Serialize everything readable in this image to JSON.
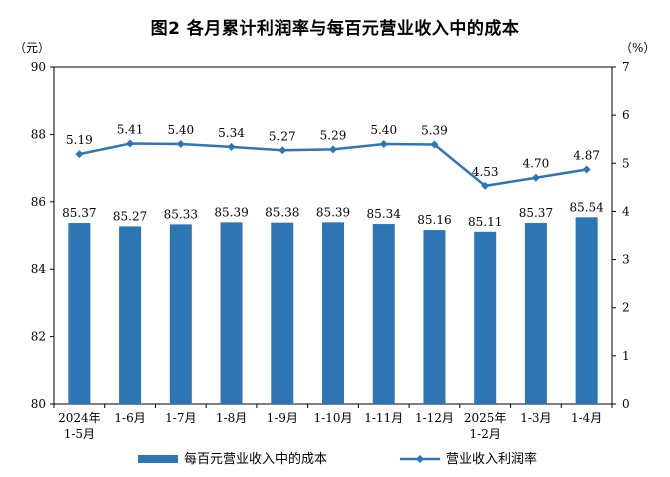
{
  "chart_data": {
    "type": "bar+line",
    "title": "图2  各月累计利润率与每百元营业收入中的成本",
    "left_unit": "（元）",
    "right_unit": "（%）",
    "left_ylim": [
      80,
      90
    ],
    "left_ticks": [
      "80",
      "82",
      "84",
      "86",
      "88",
      "90"
    ],
    "right_ylim": [
      0,
      7
    ],
    "right_ticks": [
      "0",
      "1",
      "2",
      "3",
      "4",
      "5",
      "6",
      "7"
    ],
    "categories": [
      [
        "2024年",
        "1-5月"
      ],
      [
        "1-6月"
      ],
      [
        "1-7月"
      ],
      [
        "1-8月"
      ],
      [
        "1-9月"
      ],
      [
        "1-10月"
      ],
      [
        "1-11月"
      ],
      [
        "1-12月"
      ],
      [
        "2025年",
        "1-2月"
      ],
      [
        "1-3月"
      ],
      [
        "1-4月"
      ]
    ],
    "bar_series": {
      "name": "每百元营业收入中的成本",
      "values": [
        85.37,
        85.27,
        85.33,
        85.39,
        85.38,
        85.39,
        85.34,
        85.16,
        85.11,
        85.37,
        85.54
      ],
      "labels": [
        "85.37",
        "85.27",
        "85.33",
        "85.39",
        "85.38",
        "85.39",
        "85.34",
        "85.16",
        "85.11",
        "85.37",
        "85.54"
      ],
      "color": "#2E75B6"
    },
    "line_series": {
      "name": "营业收入利润率",
      "values": [
        5.19,
        5.41,
        5.4,
        5.34,
        5.27,
        5.29,
        5.4,
        5.39,
        4.53,
        4.7,
        4.87
      ],
      "labels": [
        "5.19",
        "5.41",
        "5.40",
        "5.34",
        "5.27",
        "5.29",
        "5.40",
        "5.39",
        "4.53",
        "4.70",
        "4.87"
      ],
      "color": "#2E75B6"
    },
    "grid": false,
    "legend_position": "bottom"
  }
}
